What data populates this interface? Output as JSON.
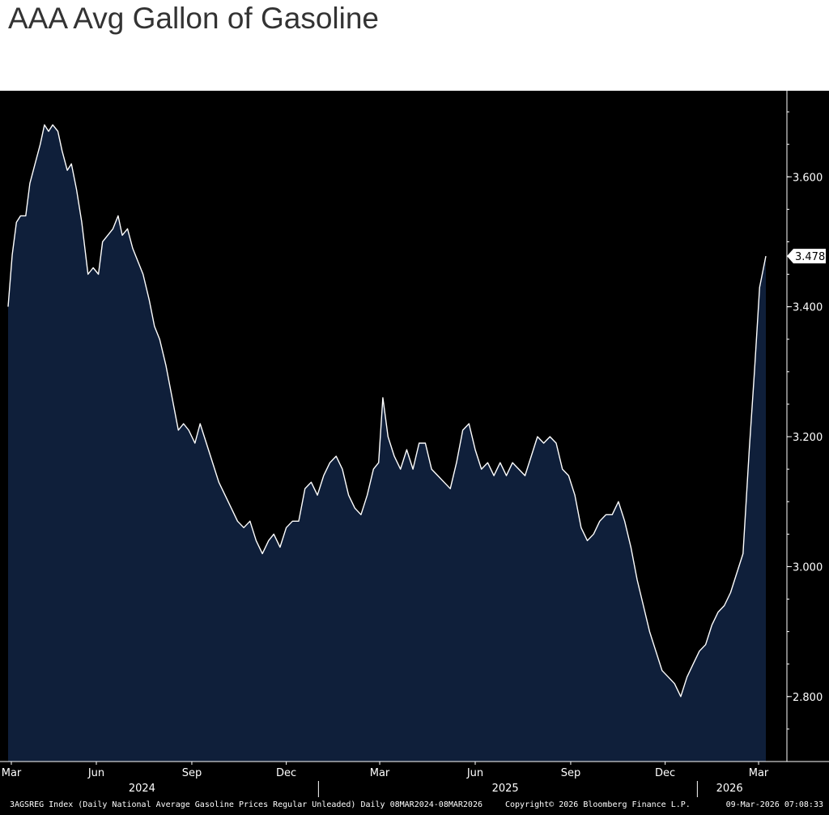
{
  "title": "AAA Avg Gallon of Gasoline",
  "chart_data": {
    "type": "area",
    "title": "AAA Avg Gallon of Gasoline",
    "x_start": "2024-03-08",
    "x_end": "2026-03-08",
    "ylim": [
      2.7,
      3.73
    ],
    "y_ticks": [
      2.8,
      3.0,
      3.2,
      3.4,
      3.6
    ],
    "y_tick_labels": [
      "2.800",
      "3.000",
      "3.200",
      "3.400",
      "3.600"
    ],
    "last_value_label": "3.478",
    "last_value": 3.478,
    "x_tick_labels": [
      {
        "label": "Mar",
        "date": "2024-03-01"
      },
      {
        "label": "Jun",
        "date": "2024-06-01"
      },
      {
        "label": "Sep",
        "date": "2024-09-01"
      },
      {
        "label": "Dec",
        "date": "2024-12-01"
      },
      {
        "label": "Mar",
        "date": "2025-03-01"
      },
      {
        "label": "Jun",
        "date": "2025-06-01"
      },
      {
        "label": "Sep",
        "date": "2025-09-01"
      },
      {
        "label": "Dec",
        "date": "2025-12-01"
      },
      {
        "label": "Mar",
        "date": "2026-03-01"
      }
    ],
    "year_labels": [
      {
        "label": "2024",
        "date": "2024-07-15"
      },
      {
        "label": "2025",
        "date": "2025-06-30"
      },
      {
        "label": "2026",
        "date": "2026-02-01"
      }
    ],
    "grid": false,
    "series": [
      {
        "fill_color": "#0f1f3a",
        "line_color": "#ffffff",
        "points": [
          [
            "2024-03-08",
            3.4
          ],
          [
            "2024-03-12",
            3.48
          ],
          [
            "2024-03-16",
            3.53
          ],
          [
            "2024-03-20",
            3.54
          ],
          [
            "2024-03-25",
            3.54
          ],
          [
            "2024-03-29",
            3.59
          ],
          [
            "2024-04-03",
            3.62
          ],
          [
            "2024-04-08",
            3.65
          ],
          [
            "2024-04-12",
            3.68
          ],
          [
            "2024-04-16",
            3.67
          ],
          [
            "2024-04-20",
            3.68
          ],
          [
            "2024-04-25",
            3.67
          ],
          [
            "2024-04-29",
            3.64
          ],
          [
            "2024-05-04",
            3.61
          ],
          [
            "2024-05-08",
            3.62
          ],
          [
            "2024-05-13",
            3.58
          ],
          [
            "2024-05-18",
            3.53
          ],
          [
            "2024-05-24",
            3.45
          ],
          [
            "2024-05-29",
            3.46
          ],
          [
            "2024-06-03",
            3.45
          ],
          [
            "2024-06-07",
            3.5
          ],
          [
            "2024-06-12",
            3.51
          ],
          [
            "2024-06-17",
            3.52
          ],
          [
            "2024-06-22",
            3.54
          ],
          [
            "2024-06-26",
            3.51
          ],
          [
            "2024-07-01",
            3.52
          ],
          [
            "2024-07-06",
            3.49
          ],
          [
            "2024-07-11",
            3.47
          ],
          [
            "2024-07-16",
            3.45
          ],
          [
            "2024-07-22",
            3.41
          ],
          [
            "2024-07-27",
            3.37
          ],
          [
            "2024-08-01",
            3.35
          ],
          [
            "2024-08-07",
            3.31
          ],
          [
            "2024-08-13",
            3.26
          ],
          [
            "2024-08-19",
            3.21
          ],
          [
            "2024-08-24",
            3.22
          ],
          [
            "2024-08-29",
            3.21
          ],
          [
            "2024-09-04",
            3.19
          ],
          [
            "2024-09-09",
            3.22
          ],
          [
            "2024-09-15",
            3.19
          ],
          [
            "2024-09-21",
            3.16
          ],
          [
            "2024-09-27",
            3.13
          ],
          [
            "2024-10-03",
            3.11
          ],
          [
            "2024-10-09",
            3.09
          ],
          [
            "2024-10-15",
            3.07
          ],
          [
            "2024-10-21",
            3.06
          ],
          [
            "2024-10-27",
            3.07
          ],
          [
            "2024-11-02",
            3.04
          ],
          [
            "2024-11-08",
            3.02
          ],
          [
            "2024-11-14",
            3.04
          ],
          [
            "2024-11-19",
            3.05
          ],
          [
            "2024-11-25",
            3.03
          ],
          [
            "2024-12-01",
            3.06
          ],
          [
            "2024-12-07",
            3.07
          ],
          [
            "2024-12-13",
            3.07
          ],
          [
            "2024-12-19",
            3.12
          ],
          [
            "2024-12-25",
            3.13
          ],
          [
            "2024-12-31",
            3.11
          ],
          [
            "2025-01-06",
            3.14
          ],
          [
            "2025-01-12",
            3.16
          ],
          [
            "2025-01-18",
            3.17
          ],
          [
            "2025-01-24",
            3.15
          ],
          [
            "2025-01-30",
            3.11
          ],
          [
            "2025-02-05",
            3.09
          ],
          [
            "2025-02-11",
            3.08
          ],
          [
            "2025-02-17",
            3.11
          ],
          [
            "2025-02-23",
            3.15
          ],
          [
            "2025-02-28",
            3.16
          ],
          [
            "2025-03-04",
            3.26
          ],
          [
            "2025-03-09",
            3.2
          ],
          [
            "2025-03-15",
            3.17
          ],
          [
            "2025-03-21",
            3.15
          ],
          [
            "2025-03-27",
            3.18
          ],
          [
            "2025-04-02",
            3.15
          ],
          [
            "2025-04-08",
            3.19
          ],
          [
            "2025-04-14",
            3.19
          ],
          [
            "2025-04-20",
            3.15
          ],
          [
            "2025-04-26",
            3.14
          ],
          [
            "2025-05-02",
            3.13
          ],
          [
            "2025-05-08",
            3.12
          ],
          [
            "2025-05-14",
            3.16
          ],
          [
            "2025-05-20",
            3.21
          ],
          [
            "2025-05-26",
            3.22
          ],
          [
            "2025-06-01",
            3.18
          ],
          [
            "2025-06-07",
            3.15
          ],
          [
            "2025-06-13",
            3.16
          ],
          [
            "2025-06-19",
            3.14
          ],
          [
            "2025-06-25",
            3.16
          ],
          [
            "2025-07-01",
            3.14
          ],
          [
            "2025-07-07",
            3.16
          ],
          [
            "2025-07-13",
            3.15
          ],
          [
            "2025-07-19",
            3.14
          ],
          [
            "2025-07-25",
            3.17
          ],
          [
            "2025-07-31",
            3.2
          ],
          [
            "2025-08-06",
            3.19
          ],
          [
            "2025-08-12",
            3.2
          ],
          [
            "2025-08-18",
            3.19
          ],
          [
            "2025-08-24",
            3.15
          ],
          [
            "2025-08-30",
            3.14
          ],
          [
            "2025-09-05",
            3.11
          ],
          [
            "2025-09-11",
            3.06
          ],
          [
            "2025-09-17",
            3.04
          ],
          [
            "2025-09-23",
            3.05
          ],
          [
            "2025-09-29",
            3.07
          ],
          [
            "2025-10-05",
            3.08
          ],
          [
            "2025-10-11",
            3.08
          ],
          [
            "2025-10-17",
            3.1
          ],
          [
            "2025-10-23",
            3.07
          ],
          [
            "2025-10-29",
            3.03
          ],
          [
            "2025-11-04",
            2.98
          ],
          [
            "2025-11-10",
            2.94
          ],
          [
            "2025-11-16",
            2.9
          ],
          [
            "2025-11-22",
            2.87
          ],
          [
            "2025-11-28",
            2.84
          ],
          [
            "2025-12-04",
            2.83
          ],
          [
            "2025-12-10",
            2.82
          ],
          [
            "2025-12-16",
            2.8
          ],
          [
            "2025-12-22",
            2.83
          ],
          [
            "2025-12-28",
            2.85
          ],
          [
            "2026-01-03",
            2.87
          ],
          [
            "2026-01-09",
            2.88
          ],
          [
            "2026-01-15",
            2.91
          ],
          [
            "2026-01-21",
            2.93
          ],
          [
            "2026-01-27",
            2.94
          ],
          [
            "2026-02-02",
            2.96
          ],
          [
            "2026-02-08",
            2.99
          ],
          [
            "2026-02-14",
            3.02
          ],
          [
            "2026-02-20",
            3.18
          ],
          [
            "2026-02-25",
            3.3
          ],
          [
            "2026-03-02",
            3.43
          ],
          [
            "2026-03-08",
            3.478
          ]
        ]
      }
    ]
  },
  "footer": {
    "left": "3AGSREG Index (Daily National Average Gasoline Prices Regular Unleaded) Daily 08MAR2024-08MAR2026",
    "center": "Copyright© 2026 Bloomberg Finance L.P.",
    "right": "09-Mar-2026 07:08:33"
  }
}
